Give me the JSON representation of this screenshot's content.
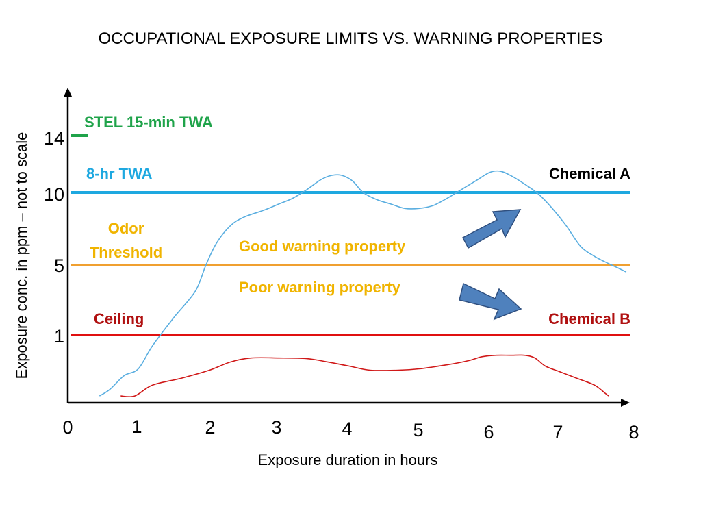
{
  "chart_data": {
    "type": "line",
    "title": "OCCUPATIONAL EXPOSURE LIMITS VS. WARNING PROPERTIES",
    "xlabel": "Exposure duration in hours",
    "ylabel": "Exposure conc. in ppm – not to scale",
    "x_ticks": [
      "0",
      "1",
      "2",
      "3",
      "4",
      "5",
      "6",
      "7",
      "8"
    ],
    "y_ticks": [
      {
        "value": 14,
        "label": "14"
      },
      {
        "value": 10,
        "label": "10"
      },
      {
        "value": 5,
        "label": "5"
      },
      {
        "value": 1,
        "label": "1"
      }
    ],
    "xlim": [
      0,
      8
    ],
    "y_scale": "not to scale",
    "grid": false,
    "reference_lines": [
      {
        "label": "STEL 15-min TWA",
        "value": 14,
        "color": "#1fa34a",
        "extent": "short tick at y-axis"
      },
      {
        "label": "8-hr TWA",
        "value": 10,
        "color": "#1ea8e0"
      },
      {
        "label_lines": [
          "Odor",
          "Threshold"
        ],
        "value": 5,
        "color": "#f0a030",
        "label_color": "#f0b400"
      },
      {
        "label": "Ceiling",
        "value": 1,
        "color": "#e01010",
        "label_color": "#b01010"
      }
    ],
    "series": [
      {
        "name": "Chemical A",
        "color": "#5aaee0",
        "label_color": "#000000",
        "x": [
          0.45,
          0.6,
          0.8,
          1.0,
          1.2,
          1.5,
          1.8,
          1.95,
          2.1,
          2.3,
          2.5,
          2.8,
          3.0,
          3.2,
          3.4,
          3.6,
          3.75,
          3.9,
          4.05,
          4.2,
          4.4,
          4.6,
          4.8,
          5.0,
          5.2,
          5.4,
          5.6,
          5.8,
          6.0,
          6.15,
          6.3,
          6.5,
          6.7,
          6.9,
          7.1,
          7.3,
          7.5,
          7.7,
          7.85,
          7.95
        ],
        "y": [
          -3.5,
          -3.0,
          -2.0,
          -1.5,
          0.2,
          2.0,
          3.5,
          5.0,
          6.5,
          7.7,
          8.3,
          8.8,
          9.2,
          9.6,
          10.2,
          10.9,
          11.2,
          11.2,
          10.8,
          10.0,
          9.5,
          9.2,
          8.9,
          8.9,
          9.1,
          9.6,
          10.2,
          10.8,
          11.4,
          11.5,
          11.2,
          10.6,
          9.9,
          8.9,
          7.7,
          6.3,
          5.6,
          5.1,
          4.8,
          4.6
        ]
      },
      {
        "name": "Chemical B",
        "color": "#d01818",
        "label_color": "#b01010",
        "x": [
          0.75,
          0.95,
          1.2,
          1.6,
          2.0,
          2.3,
          2.6,
          3.0,
          3.4,
          3.7,
          4.0,
          4.3,
          4.7,
          5.0,
          5.4,
          5.7,
          5.9,
          6.1,
          6.3,
          6.5,
          6.65,
          6.8,
          7.0,
          7.25,
          7.5,
          7.65,
          7.7
        ],
        "y": [
          -3.5,
          -3.5,
          -2.7,
          -2.2,
          -1.6,
          -1.0,
          -0.7,
          -0.7,
          -0.75,
          -1.0,
          -1.3,
          -1.6,
          -1.6,
          -1.5,
          -1.2,
          -0.9,
          -0.6,
          -0.5,
          -0.5,
          -0.5,
          -0.7,
          -1.3,
          -1.7,
          -2.2,
          -2.7,
          -3.3,
          -3.5
        ]
      }
    ],
    "annotations": [
      {
        "text": "Good warning property",
        "color": "#f0b400",
        "arrow": "up-right",
        "arrow_color": "#4f81bd"
      },
      {
        "text": "Poor warning property",
        "color": "#f0b400",
        "arrow": "down-right",
        "arrow_color": "#4f81bd"
      }
    ]
  }
}
